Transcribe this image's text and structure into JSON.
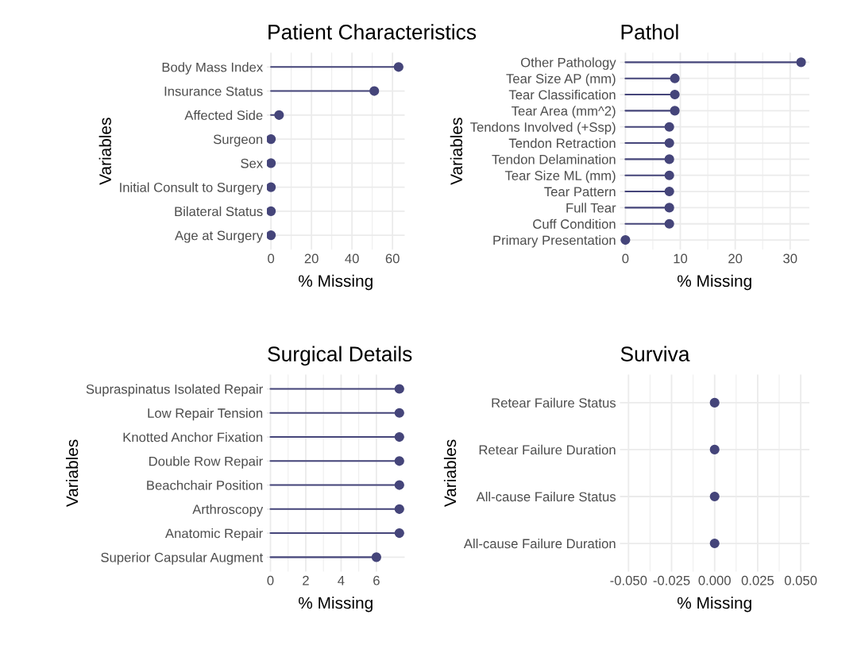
{
  "chart_data": [
    {
      "type": "lollipop",
      "orientation": "horizontal",
      "title": "Patient Characteristics",
      "xlabel": "% Missing",
      "ylabel": "Variables",
      "categories": [
        "Body Mass Index",
        "Insurance Status",
        "Affected Side",
        "Surgeon",
        "Sex",
        "Initial Consult to Surgery",
        "Bilateral Status",
        "Age at Surgery"
      ],
      "values": [
        63,
        51,
        4,
        0,
        0,
        0,
        0,
        0
      ],
      "color": "#45457a",
      "xlim": [
        -2,
        66
      ],
      "xticks": [
        0,
        20,
        40,
        60
      ],
      "grid": true
    },
    {
      "type": "lollipop",
      "orientation": "horizontal",
      "title": "Pathol",
      "xlabel": "% Missing",
      "ylabel": "Variables",
      "categories": [
        "Other Pathology",
        "Tear Size AP (mm)",
        "Tear Classification",
        "Tear Area (mm^2)",
        "Tendons Involved (+Ssp)",
        "Tendon Retraction",
        "Tendon Delamination",
        "Tear Size ML (mm)",
        "Tear Pattern",
        "Full Tear",
        "Cuff Condition",
        "Primary Presentation"
      ],
      "values": [
        32,
        9,
        9,
        9,
        8,
        8,
        8,
        8,
        8,
        8,
        8,
        0
      ],
      "color": "#45457a",
      "xlim": [
        -1,
        33.5
      ],
      "xticks": [
        0,
        10,
        20,
        30
      ],
      "grid": true
    },
    {
      "type": "lollipop",
      "orientation": "horizontal",
      "title": "Surgical Details",
      "xlabel": "% Missing",
      "ylabel": "Variables",
      "categories": [
        "Supraspinatus Isolated Repair",
        "Low Repair Tension",
        "Knotted Anchor Fixation",
        "Double Row Repair",
        "Beachchair Position",
        "Arthroscopy",
        "Anatomic Repair",
        "Superior Capsular Augment"
      ],
      "values": [
        7.3,
        7.3,
        7.3,
        7.3,
        7.3,
        7.3,
        7.3,
        6
      ],
      "color": "#45457a",
      "xlim": [
        -0.2,
        7.6
      ],
      "xticks": [
        0,
        2,
        4,
        6
      ],
      "grid": true
    },
    {
      "type": "lollipop",
      "orientation": "horizontal",
      "title": "Surviva",
      "xlabel": "% Missing",
      "ylabel": "Variables",
      "categories": [
        "Retear Failure Status",
        "Retear Failure Duration",
        "All-cause Failure Status",
        "All-cause Failure Duration"
      ],
      "values": [
        0,
        0,
        0,
        0
      ],
      "color": "#45457a",
      "xlim": [
        -0.055,
        0.055
      ],
      "xticks": [
        {
          "value": -0.05,
          "label": "-0.050"
        },
        {
          "value": -0.025,
          "label": "-0.025"
        },
        {
          "value": 0,
          "label": "0.000"
        },
        {
          "value": 0.025,
          "label": "0.025"
        },
        {
          "value": 0.05,
          "label": "0.050"
        }
      ],
      "grid": true
    }
  ]
}
